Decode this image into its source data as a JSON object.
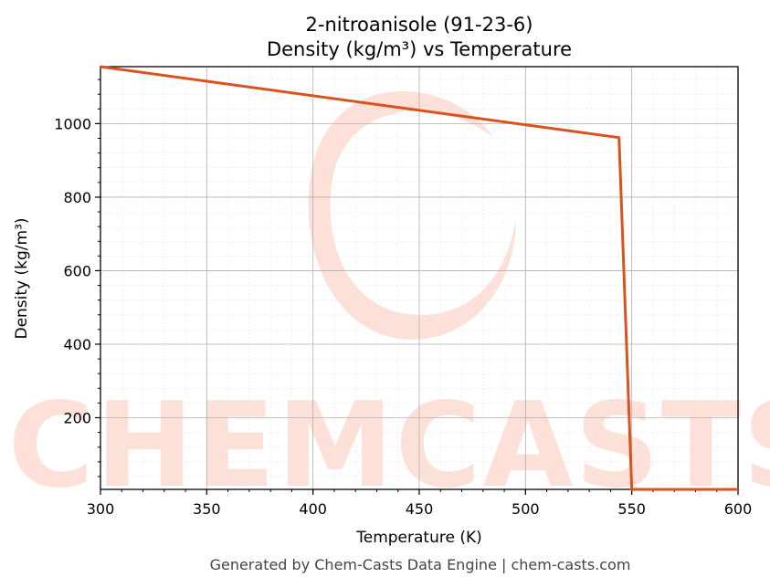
{
  "chart_data": {
    "type": "line",
    "title": "2-nitroanisole (91-23-6)",
    "subtitle": "Density (kg/m³) vs Temperature",
    "xlabel": "Temperature (K)",
    "ylabel": "Density (kg/m³)",
    "xlim": [
      300,
      600
    ],
    "ylim": [
      5,
      1155
    ],
    "x_ticks": [
      300,
      350,
      400,
      450,
      500,
      550,
      600
    ],
    "y_ticks": [
      200,
      400,
      600,
      800,
      1000
    ],
    "grid": true,
    "series": [
      {
        "color": "#d9531e",
        "points": [
          [
            300,
            1155
          ],
          [
            544,
            962
          ],
          [
            550,
            5
          ],
          [
            600,
            5
          ]
        ]
      }
    ]
  },
  "watermark": {
    "text": "CHEMCASTS",
    "color": "#fde0d8"
  },
  "footer": "Generated by Chem-Casts Data Engine | chem-casts.com"
}
